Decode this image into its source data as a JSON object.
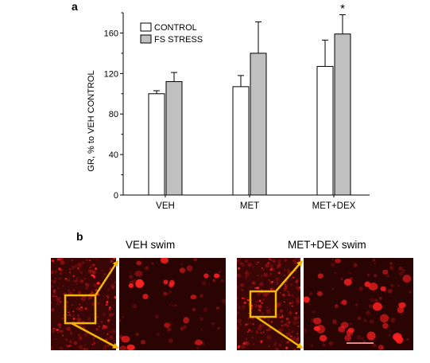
{
  "figure": {
    "panel_a_label": "a",
    "panel_b_label": "b"
  },
  "chart_data": {
    "type": "bar",
    "categories": [
      "VEH",
      "MET",
      "MET+DEX"
    ],
    "series": [
      {
        "name": "CONTROL",
        "color": "#ffffff",
        "values": [
          100,
          107,
          127
        ],
        "errors": [
          3,
          11,
          26
        ]
      },
      {
        "name": "FS STRESS",
        "color": "#c0c0c0",
        "values": [
          112,
          140,
          159
        ],
        "errors": [
          9,
          31,
          19
        ]
      }
    ],
    "ylabel": "GR, % to VEH CONTROL",
    "xlabel": "",
    "ylim": [
      0,
      180
    ],
    "yticks": [
      0,
      40,
      80,
      120,
      160
    ],
    "y_minor_step": 20,
    "legend": "top-left",
    "grid": false,
    "annotations": [
      {
        "text": "*",
        "category": "MET+DEX",
        "series": "FS STRESS"
      }
    ]
  },
  "micrographs": {
    "left_caption": "VEH swim",
    "right_caption": "MET+DEX swim",
    "stain_color": "#ff2020",
    "zoom_box_color": "#f5b800"
  }
}
